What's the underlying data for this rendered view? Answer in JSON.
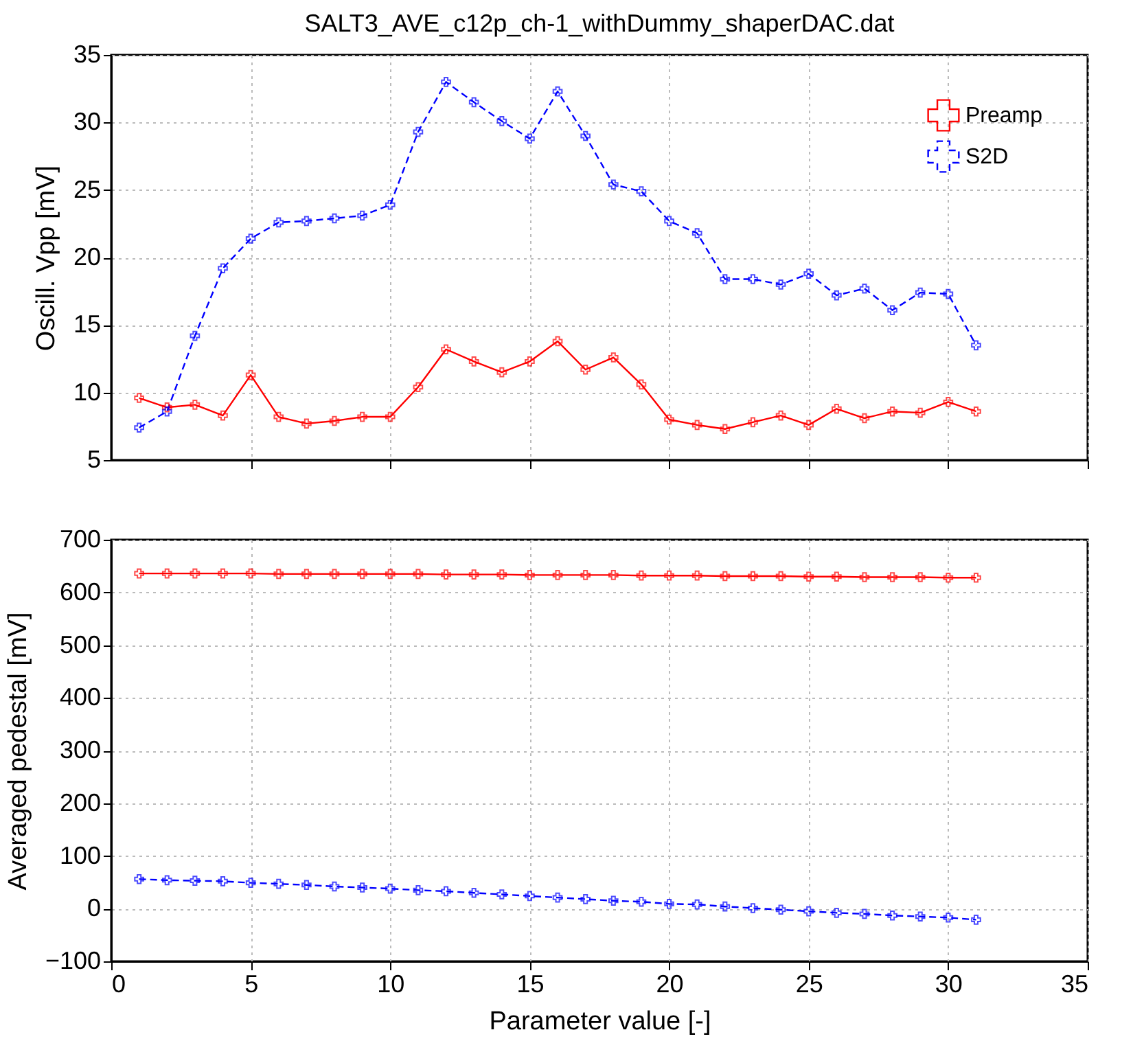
{
  "chart_data": [
    {
      "type": "line",
      "title": "SALT3_AVE_c12p_ch-1_withDummy_shaperDAC.dat",
      "ylabel": "Oscill. Vpp [mV]",
      "x": [
        1,
        2,
        3,
        4,
        5,
        6,
        7,
        8,
        9,
        10,
        11,
        12,
        13,
        14,
        15,
        16,
        17,
        18,
        19,
        20,
        21,
        22,
        23,
        24,
        25,
        26,
        27,
        28,
        29,
        30,
        31
      ],
      "series": [
        {
          "name": "Preamp",
          "color": "#ff0000",
          "marker": "cross",
          "line_style": "solid",
          "values": [
            9.6,
            8.9,
            9.1,
            8.3,
            11.3,
            8.2,
            7.7,
            7.9,
            8.2,
            8.2,
            10.4,
            13.2,
            12.3,
            11.5,
            12.3,
            13.8,
            11.7,
            12.6,
            10.6,
            8.0,
            7.6,
            7.3,
            7.8,
            8.3,
            7.6,
            8.8,
            8.1,
            8.6,
            8.5,
            9.3,
            8.6
          ]
        },
        {
          "name": "S2D",
          "color": "#0000ff",
          "marker": "cross",
          "line_style": "dashed",
          "values": [
            7.4,
            8.6,
            14.2,
            19.2,
            21.4,
            22.6,
            22.7,
            22.9,
            23.1,
            23.9,
            29.3,
            33.0,
            31.5,
            30.1,
            28.8,
            32.3,
            29.0,
            25.4,
            24.9,
            22.7,
            21.8,
            18.4,
            18.4,
            18.0,
            18.8,
            17.2,
            17.7,
            16.1,
            17.4,
            17.3,
            13.5
          ]
        }
      ],
      "xlim": [
        0,
        35
      ],
      "xticks": [
        5,
        10,
        15,
        20,
        25,
        30,
        35
      ],
      "ylim": [
        5,
        35
      ],
      "yticks": [
        5,
        10,
        15,
        20,
        25,
        30,
        35
      ],
      "tick_labels": "y",
      "grid": true,
      "legend": "top right"
    },
    {
      "type": "line",
      "ylabel": "Averaged pedestal [mV]",
      "xlabel": "Parameter value [-]",
      "x": [
        1,
        2,
        3,
        4,
        5,
        6,
        7,
        8,
        9,
        10,
        11,
        12,
        13,
        14,
        15,
        16,
        17,
        18,
        19,
        20,
        21,
        22,
        23,
        24,
        25,
        26,
        27,
        28,
        29,
        30,
        31
      ],
      "series": [
        {
          "name": "Preamp",
          "color": "#ff0000",
          "marker": "cross",
          "line_style": "solid",
          "values": [
            636,
            636,
            636,
            636,
            636,
            635,
            635,
            635,
            635,
            635,
            635,
            634,
            634,
            634,
            633,
            633,
            633,
            633,
            632,
            632,
            632,
            631,
            631,
            631,
            630,
            630,
            629,
            629,
            629,
            628,
            628
          ]
        },
        {
          "name": "S2D",
          "color": "#0000ff",
          "marker": "cross",
          "line_style": "dashed",
          "values": [
            56,
            54,
            53,
            52,
            49,
            47,
            45,
            42,
            40,
            38,
            35,
            33,
            30,
            27,
            24,
            21,
            18,
            15,
            13,
            9,
            8,
            4,
            1,
            -2,
            -5,
            -8,
            -10,
            -13,
            -15,
            -17,
            -21
          ]
        }
      ],
      "xlim": [
        0,
        35
      ],
      "xticks": [
        0,
        5,
        10,
        15,
        20,
        25,
        30,
        35
      ],
      "ylim": [
        -100,
        700
      ],
      "yticks": [
        -100,
        0,
        100,
        200,
        300,
        400,
        500,
        600,
        700
      ],
      "grid": true,
      "legend": "top right"
    }
  ]
}
